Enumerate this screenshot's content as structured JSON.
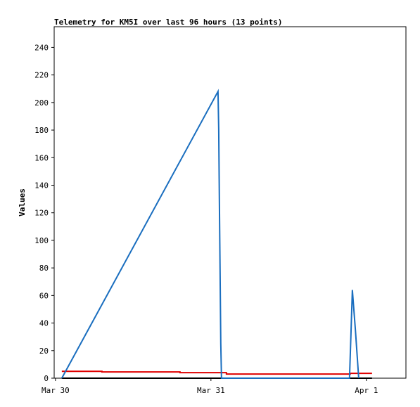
{
  "chart_data": {
    "type": "line",
    "title": "Telemetry for KM5I over last 96 hours (13 points)",
    "y_label": "Values",
    "xlim": [
      -0.2,
      54.1
    ],
    "ylim": [
      0,
      255
    ],
    "xticks": [
      {
        "value": 0,
        "label": "Mar 30"
      },
      {
        "value": 24,
        "label": "Mar 31"
      },
      {
        "value": 48,
        "label": "Apr 1"
      }
    ],
    "yticks": [
      0,
      20,
      40,
      60,
      80,
      100,
      120,
      140,
      160,
      180,
      200,
      220,
      240
    ],
    "series": [
      {
        "color": "#000000",
        "x": [
          0.98,
          48.87
        ],
        "values": [
          0,
          0
        ]
      },
      {
        "color": "#e00000",
        "x": [
          0.98,
          7.17,
          7.17,
          19.22,
          19.22,
          26.39,
          26.39,
          45.5,
          45.5,
          48.87
        ],
        "values": [
          5,
          5,
          4.5,
          4.5,
          4,
          4,
          3,
          3,
          3.5,
          3.5
        ]
      },
      {
        "color": "#1a6ebf",
        "x": [
          0.98,
          25.09,
          25.2,
          25.3,
          25.41,
          25.52,
          25.63,
          45.39,
          45.6,
          45.83,
          46.3,
          46.81
        ],
        "values": [
          0,
          208,
          181,
          130,
          78,
          25,
          0,
          0,
          30,
          64,
          35,
          0
        ]
      }
    ]
  }
}
